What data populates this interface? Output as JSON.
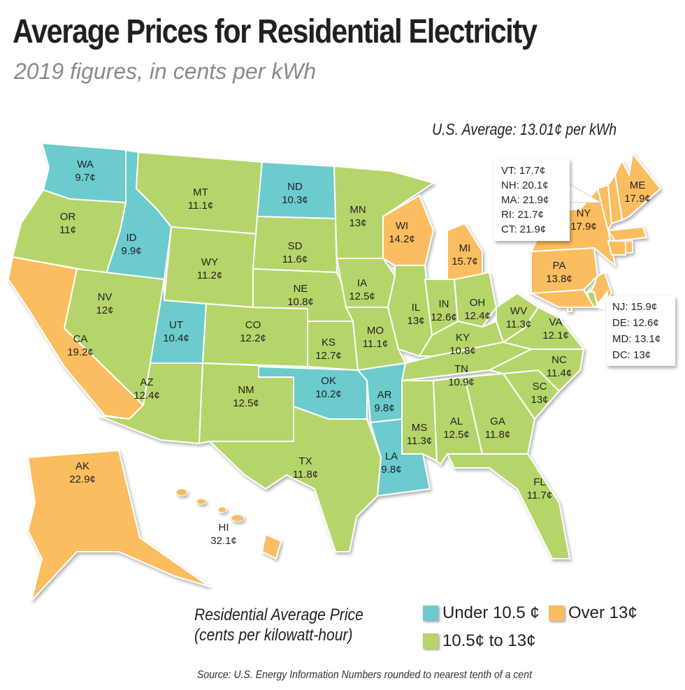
{
  "title": "Average Prices for Residential Electricity",
  "subtitle": "2019 figures, in cents per kWh",
  "us_average": "U.S. Average: 13.01¢ per kWh",
  "colors": {
    "under": "#6ccbcd",
    "mid": "#b5d56b",
    "over": "#fbbd5e"
  },
  "states": [
    {
      "code": "WA",
      "price": "9.7¢",
      "cat": "under"
    },
    {
      "code": "OR",
      "price": "11¢",
      "cat": "mid"
    },
    {
      "code": "CA",
      "price": "19.2¢",
      "cat": "over"
    },
    {
      "code": "ID",
      "price": "9.9¢",
      "cat": "under"
    },
    {
      "code": "NV",
      "price": "12¢",
      "cat": "mid"
    },
    {
      "code": "MT",
      "price": "11.1¢",
      "cat": "mid"
    },
    {
      "code": "WY",
      "price": "11.2¢",
      "cat": "mid"
    },
    {
      "code": "UT",
      "price": "10.4¢",
      "cat": "under"
    },
    {
      "code": "AZ",
      "price": "12.4¢",
      "cat": "mid"
    },
    {
      "code": "CO",
      "price": "12.2¢",
      "cat": "mid"
    },
    {
      "code": "NM",
      "price": "12.5¢",
      "cat": "mid"
    },
    {
      "code": "ND",
      "price": "10.3¢",
      "cat": "under"
    },
    {
      "code": "SD",
      "price": "11.6¢",
      "cat": "mid"
    },
    {
      "code": "NE",
      "price": "10.8¢",
      "cat": "mid"
    },
    {
      "code": "KS",
      "price": "12.7¢",
      "cat": "mid"
    },
    {
      "code": "OK",
      "price": "10.2¢",
      "cat": "under"
    },
    {
      "code": "TX",
      "price": "11.8¢",
      "cat": "mid"
    },
    {
      "code": "MN",
      "price": "13¢",
      "cat": "mid"
    },
    {
      "code": "IA",
      "price": "12.5¢",
      "cat": "mid"
    },
    {
      "code": "MO",
      "price": "11.1¢",
      "cat": "mid"
    },
    {
      "code": "AR",
      "price": "9.8¢",
      "cat": "under"
    },
    {
      "code": "LA",
      "price": "9.8¢",
      "cat": "under"
    },
    {
      "code": "WI",
      "price": "14.2¢",
      "cat": "over"
    },
    {
      "code": "IL",
      "price": "13¢",
      "cat": "mid"
    },
    {
      "code": "MI",
      "price": "15.7¢",
      "cat": "over"
    },
    {
      "code": "IN",
      "price": "12.6¢",
      "cat": "mid"
    },
    {
      "code": "OH",
      "price": "12.4¢",
      "cat": "mid"
    },
    {
      "code": "KY",
      "price": "10.8¢",
      "cat": "mid"
    },
    {
      "code": "TN",
      "price": "10.9¢",
      "cat": "mid"
    },
    {
      "code": "MS",
      "price": "11.3¢",
      "cat": "mid"
    },
    {
      "code": "AL",
      "price": "12.5¢",
      "cat": "mid"
    },
    {
      "code": "GA",
      "price": "11.8¢",
      "cat": "mid"
    },
    {
      "code": "FL",
      "price": "11.7¢",
      "cat": "mid"
    },
    {
      "code": "SC",
      "price": "13¢",
      "cat": "mid"
    },
    {
      "code": "NC",
      "price": "11.4¢",
      "cat": "mid"
    },
    {
      "code": "VA",
      "price": "12.1¢",
      "cat": "mid"
    },
    {
      "code": "WV",
      "price": "11.3¢",
      "cat": "mid"
    },
    {
      "code": "PA",
      "price": "13.8¢",
      "cat": "over"
    },
    {
      "code": "NY",
      "price": "17.9¢",
      "cat": "over"
    },
    {
      "code": "ME",
      "price": "17.9¢",
      "cat": "over"
    },
    {
      "code": "AK",
      "price": "22.9¢",
      "cat": "over"
    },
    {
      "code": "HI",
      "price": "32.1¢",
      "cat": "over"
    }
  ],
  "small_states": [
    {
      "code": "VT",
      "price": "17.7¢",
      "cat": "over"
    },
    {
      "code": "NH",
      "price": "20.1¢",
      "cat": "over"
    },
    {
      "code": "MA",
      "price": "21.9¢",
      "cat": "over"
    },
    {
      "code": "RI",
      "price": "21.7¢",
      "cat": "over"
    },
    {
      "code": "CT",
      "price": "21.9¢",
      "cat": "over"
    },
    {
      "code": "NJ",
      "price": "15.9¢",
      "cat": "over"
    },
    {
      "code": "DE",
      "price": "12.6¢",
      "cat": "mid"
    },
    {
      "code": "MD",
      "price": "13.1¢",
      "cat": "over"
    },
    {
      "code": "DC",
      "price": "13¢",
      "cat": "over"
    }
  ],
  "callouts": {
    "new_england": [
      "VT: 17.7¢",
      "NH: 20.1¢",
      "MA: 21.9¢",
      "RI: 21.7¢",
      "CT: 21.9¢"
    ],
    "mid_atlantic": [
      "NJ: 15.9¢",
      "DE: 12.6¢",
      "MD: 13.1¢",
      "DC: 13¢"
    ]
  },
  "legend": {
    "title_line1": "Residential Average Price",
    "title_line2": "(cents per kilowatt-hour)",
    "under": "Under 10.5 ¢",
    "mid": "10.5¢ to 13¢",
    "over": "Over 13¢"
  },
  "source": "Source: U.S. Energy Information Numbers rounded to nearest tenth of a cent"
}
